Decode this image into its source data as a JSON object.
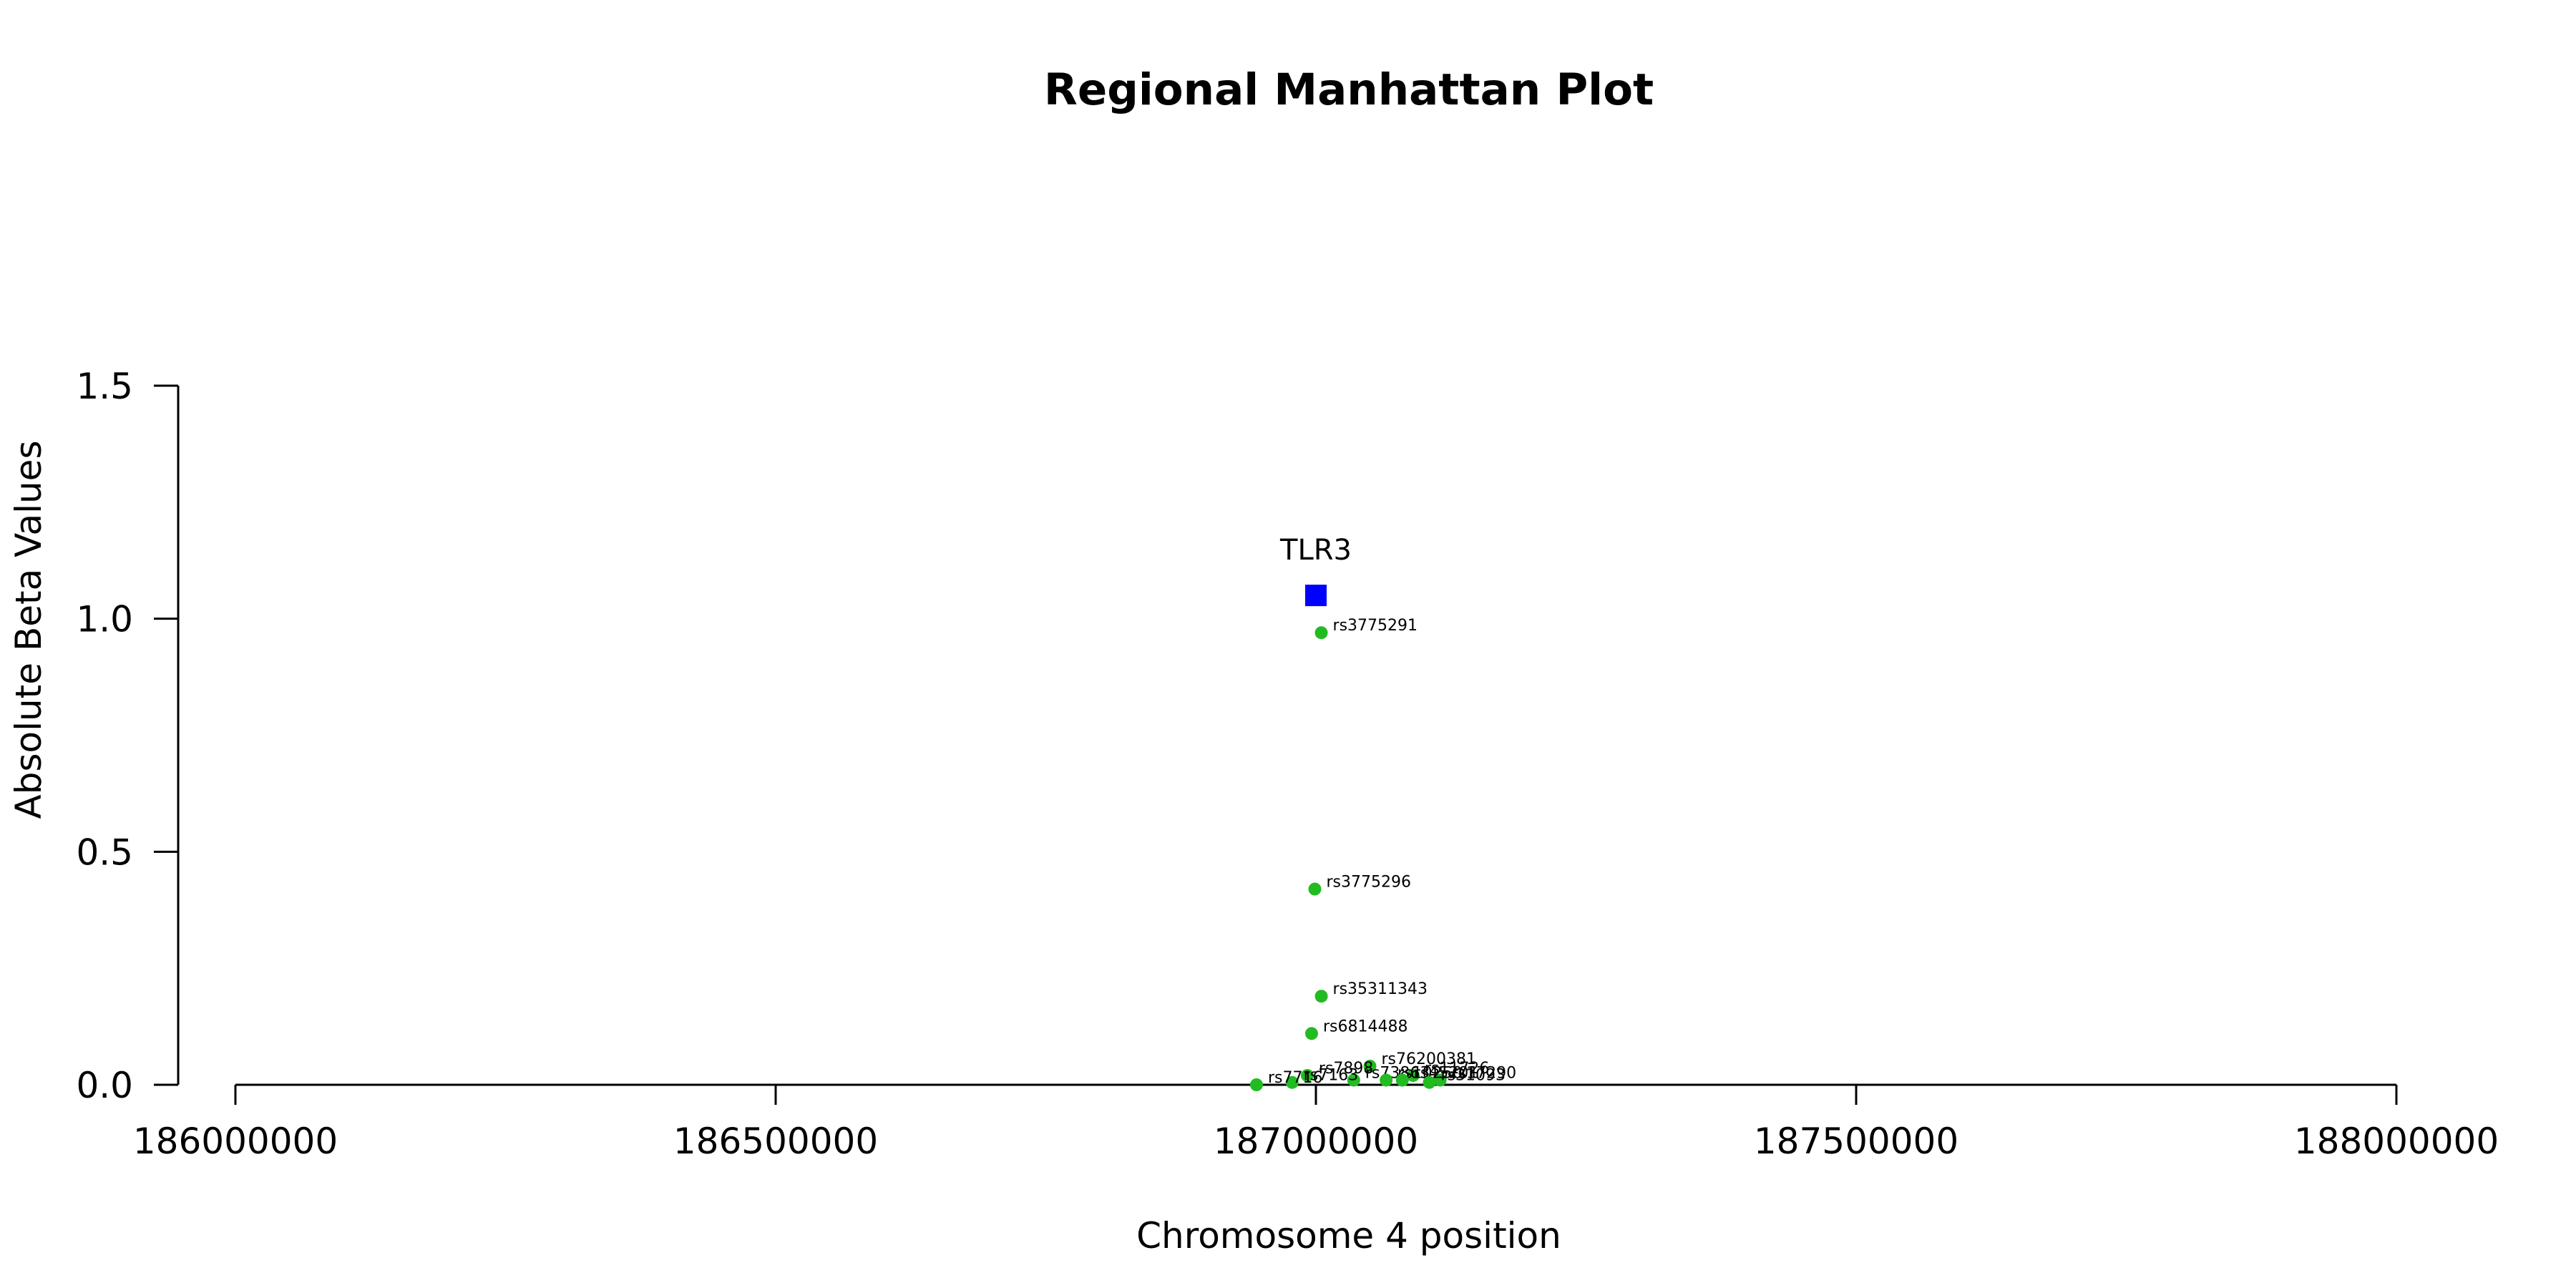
{
  "chart_data": {
    "type": "scatter",
    "title": "Regional Manhattan Plot",
    "xlabel": "Chromosome 4 position",
    "ylabel": "Absolute Beta Values",
    "xlim": [
      186000000,
      188000000
    ],
    "ylim": [
      0,
      1.5
    ],
    "x_ticks": [
      {
        "value": 186000000,
        "label": "186000000"
      },
      {
        "value": 186500000,
        "label": "186500000"
      },
      {
        "value": 187000000,
        "label": "187000000"
      },
      {
        "value": 187500000,
        "label": "187500000"
      },
      {
        "value": 188000000,
        "label": "188000000"
      }
    ],
    "y_ticks": [
      {
        "value": 0.0,
        "label": "0.0"
      },
      {
        "value": 0.5,
        "label": "0.5"
      },
      {
        "value": 1.0,
        "label": "1.0"
      },
      {
        "value": 1.5,
        "label": "1.5"
      }
    ],
    "gene": {
      "name": "TLR3",
      "x": 187000000,
      "y": 1.05,
      "color": "#0000ff",
      "marker": "square"
    },
    "snp_color": "#22bb22",
    "snps": [
      {
        "id": "rs3775291",
        "x": 187005000,
        "y": 0.97
      },
      {
        "id": "rs3775296",
        "x": 186999000,
        "y": 0.42
      },
      {
        "id": "rs35311343",
        "x": 187005000,
        "y": 0.19
      },
      {
        "id": "rs6814488",
        "x": 186996000,
        "y": 0.11
      },
      {
        "id": "rs76200381",
        "x": 187050000,
        "y": 0.04
      },
      {
        "id": "rs7898",
        "x": 186992000,
        "y": 0.02
      },
      {
        "id": "rs11726",
        "x": 187090000,
        "y": 0.02
      },
      {
        "id": "rs17290",
        "x": 187115000,
        "y": 0.01
      },
      {
        "id": "rs73863",
        "x": 187035000,
        "y": 0.01
      },
      {
        "id": "rs10250",
        "x": 187065000,
        "y": 0.01
      },
      {
        "id": "rs45201",
        "x": 187080000,
        "y": 0.01
      },
      {
        "id": "rs31093",
        "x": 187105000,
        "y": 0.005
      },
      {
        "id": "rs7163",
        "x": 186978000,
        "y": 0.005
      },
      {
        "id": "rs7716",
        "x": 186945000,
        "y": 0.0
      }
    ]
  }
}
